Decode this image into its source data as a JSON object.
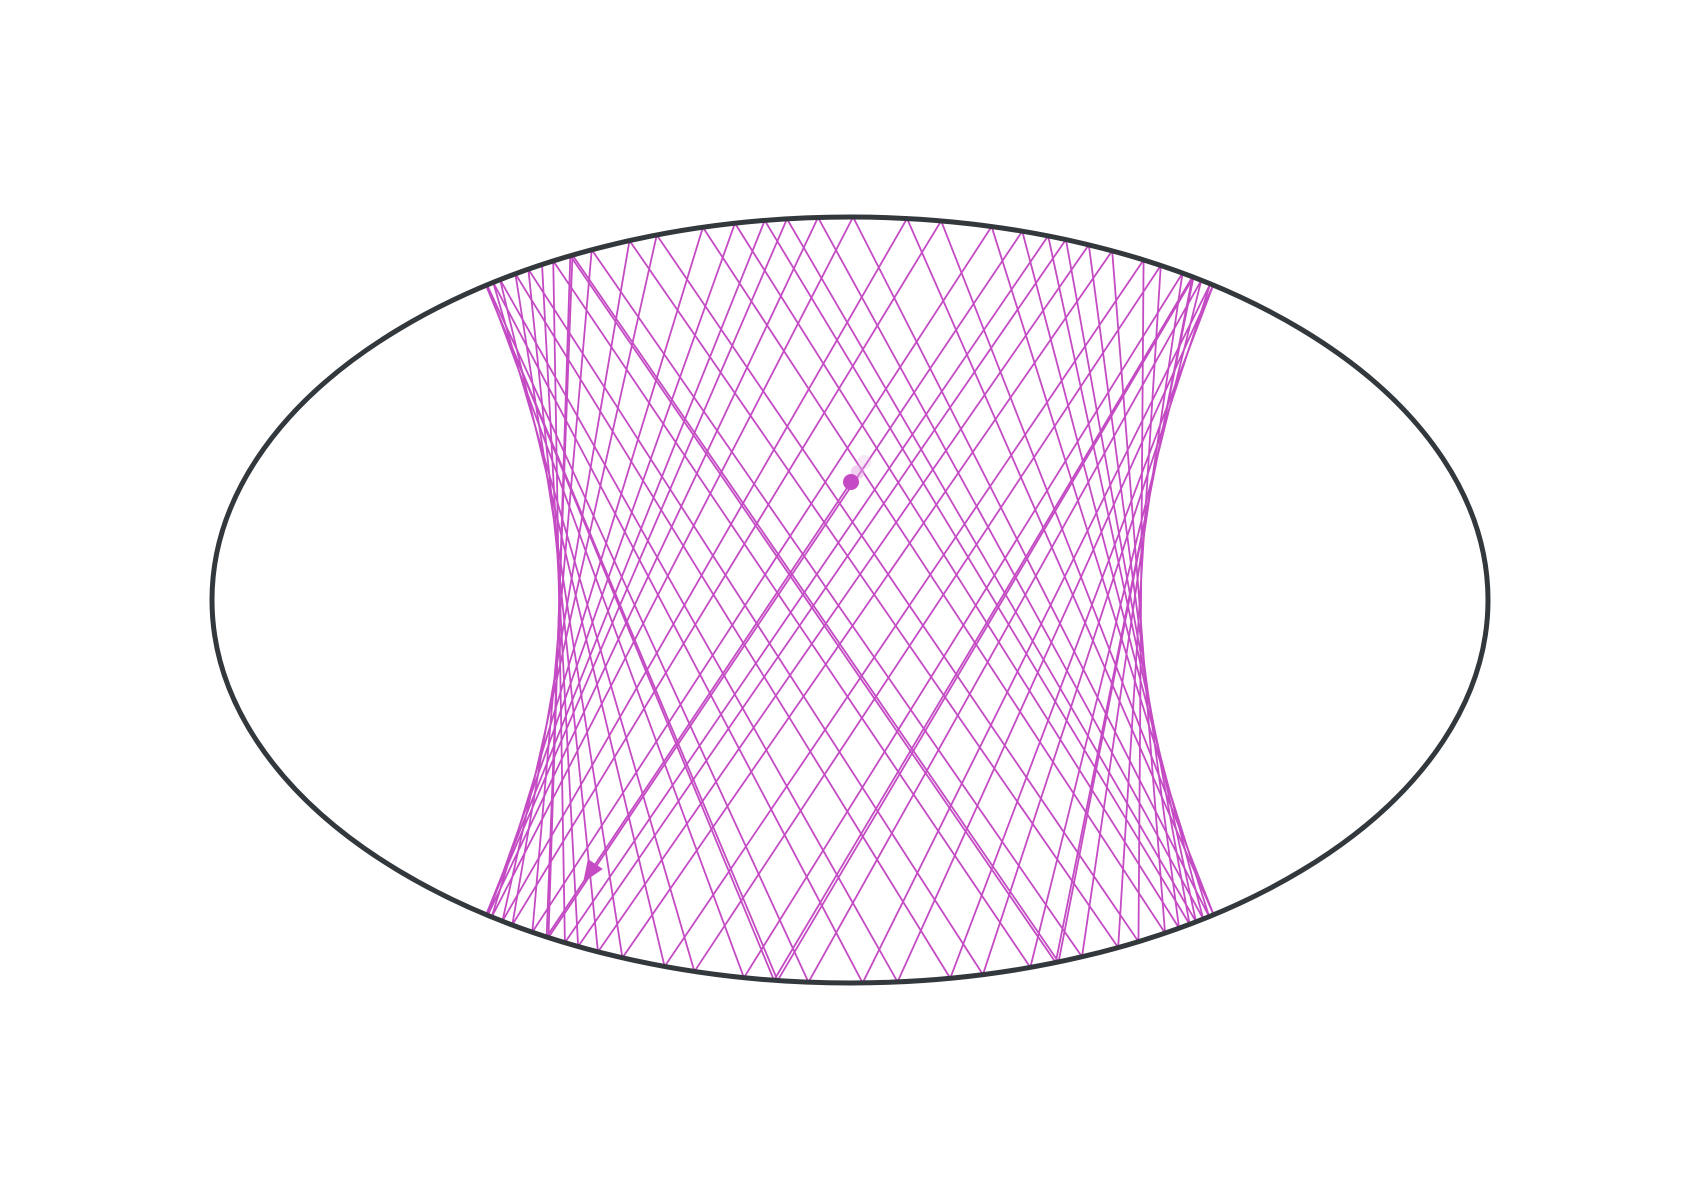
{
  "diagram": {
    "type": "elliptical-billiard-trajectory",
    "caustic": "hyperbola",
    "colors": {
      "boundary": "#33383d",
      "trajectory": "#c44bc4",
      "start_point": "#c44bc4",
      "ghost_points": "#e3a6e3",
      "background": "#ffffff"
    },
    "bounce_count": 70,
    "markers": [
      {
        "kind": "start-dot"
      },
      {
        "kind": "direction-arrow"
      },
      {
        "kind": "ghost-trail",
        "count": 2
      }
    ]
  }
}
